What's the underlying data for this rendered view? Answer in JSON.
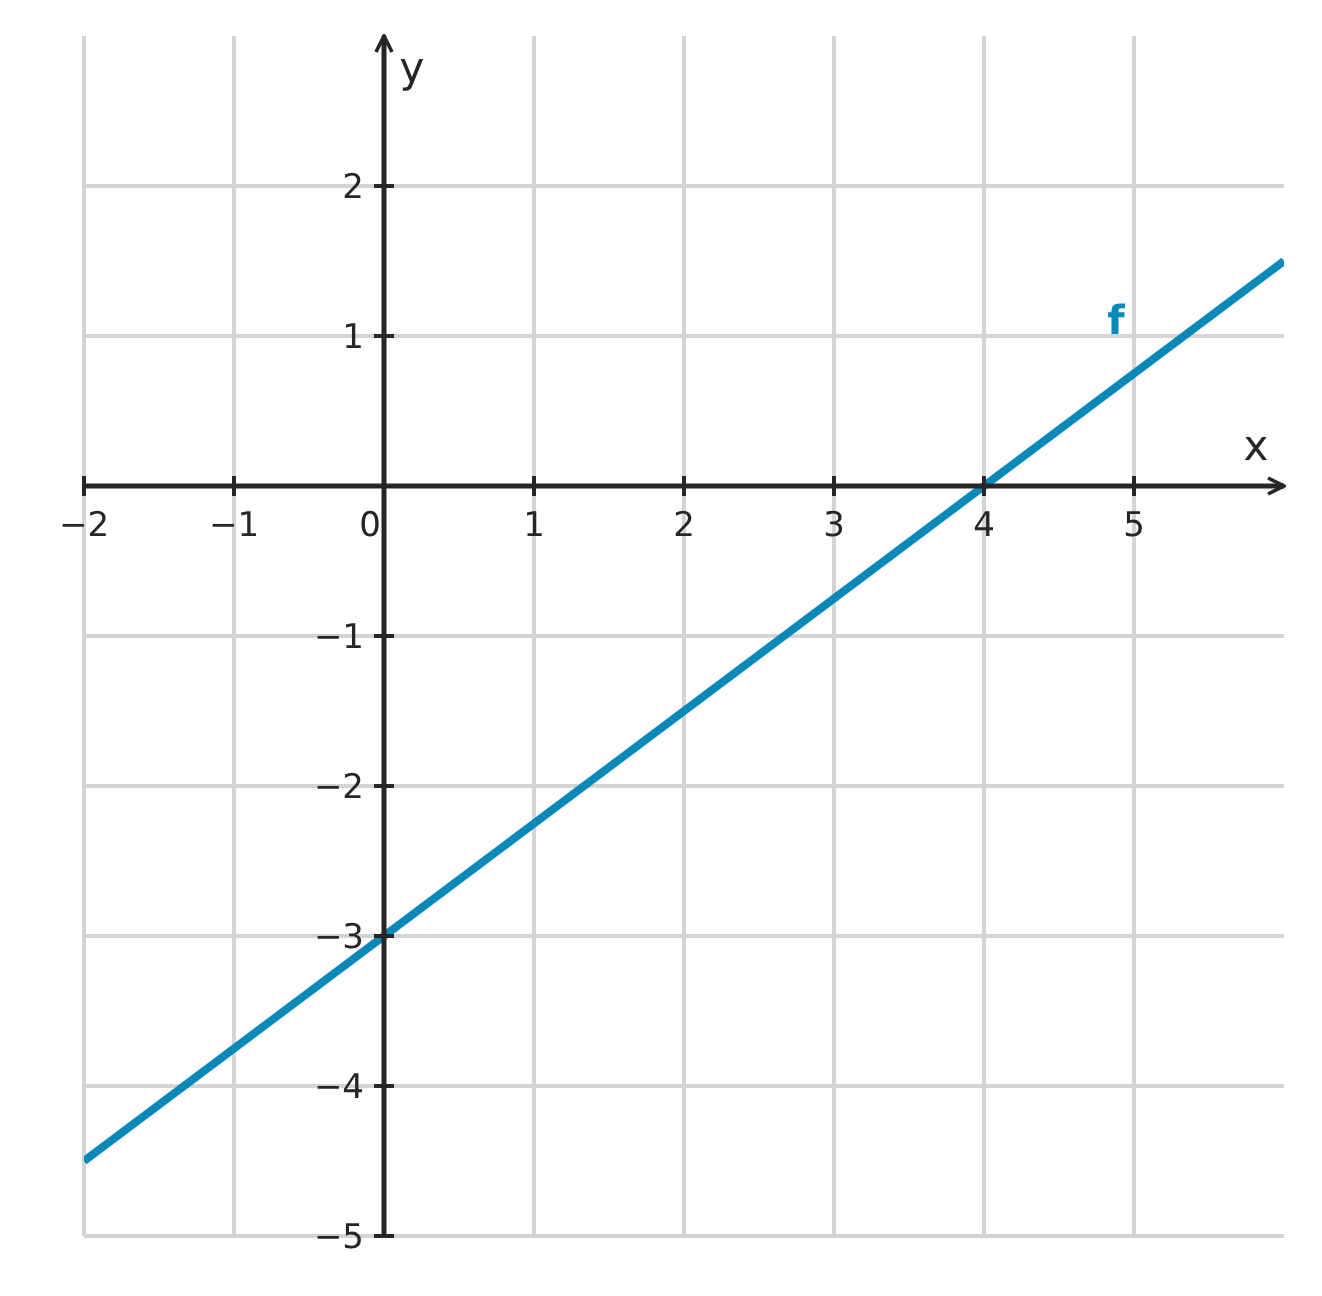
{
  "chart_data": {
    "type": "line",
    "xlabel": "x",
    "ylabel": "y",
    "x": [
      -2,
      -1,
      0,
      1,
      2,
      3,
      4,
      5,
      6
    ],
    "series": [
      {
        "name": "f",
        "color": "#0a88b8",
        "values": [
          -4.5,
          -3.75,
          -3,
          -2.25,
          -1.5,
          -0.75,
          0,
          0.75,
          1.5
        ]
      }
    ],
    "xlim": [
      -2,
      6
    ],
    "ylim": [
      -5,
      3
    ],
    "xticks": [
      {
        "value": -2,
        "label": "−2"
      },
      {
        "value": -1,
        "label": "−1"
      },
      {
        "value": 0,
        "label": "0"
      },
      1,
      2,
      3,
      4,
      5
    ],
    "yticks": [
      {
        "value": -5,
        "label": "−5"
      },
      {
        "value": -4,
        "label": "−4"
      },
      {
        "value": -3,
        "label": "−3"
      },
      {
        "value": -2,
        "label": "−2"
      },
      {
        "value": -1,
        "label": "−1"
      },
      1,
      2
    ],
    "grid": true,
    "marker": "none",
    "line_style": "solid"
  }
}
